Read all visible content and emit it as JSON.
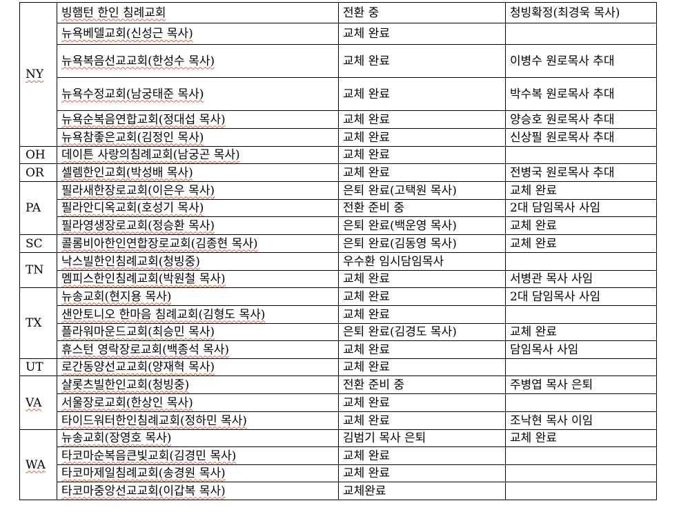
{
  "groups": [
    {
      "state": "NY",
      "rows": [
        [
          "빙햄턴 한인 침례교회",
          "전환 중",
          "청빙확정(최경욱 목사)"
        ],
        [
          "뉴욕베델교회(신성근 목사)",
          "교체 완료",
          ""
        ],
        [
          "뉴욕복음선교교회(한성수 목사)",
          "교체 완료",
          "이병수 원로목사 추대"
        ],
        [
          "뉴욕수정교회(남궁태준 목사)",
          "교체 완료",
          "박수복 원로목사 추대"
        ],
        [
          "뉴욕순복음연합교회(정대섭 목사)",
          "교체 완료",
          "양승호 원로목사 추대"
        ],
        [
          "뉴욕참좋은교회(김정인 목사)",
          "교체 완료",
          "신상필 원로목사 추대"
        ]
      ]
    },
    {
      "state": "OH",
      "rows": [
        [
          "데이튼 사랑의침례교회(남궁곤 목사)",
          "교체 완료",
          ""
        ]
      ]
    },
    {
      "state": "OR",
      "rows": [
        [
          "셀렘한인교회(박성배 목사)",
          "교체 완료",
          "전병국 원로목사 추대"
        ]
      ]
    },
    {
      "state": "PA",
      "rows": [
        [
          "필라새한장로교회(이은우 목사)",
          "은퇴 완료(고택원 목사)",
          "교체 완료"
        ],
        [
          "필라안디옥교회(호성기 목사)",
          "전환 준비 중",
          "2대 담임목사 사임"
        ],
        [
          "필라영생장로교회(정승환 목사)",
          "은퇴 완료(백운영 목사)",
          "교체 완료"
        ]
      ]
    },
    {
      "state": "SC",
      "rows": [
        [
          "콜롬비아한인연합장로교회(김종현 목사)",
          "은퇴 완료(김동영 목사)",
          "교체 완료"
        ]
      ]
    },
    {
      "state": "TN",
      "rows": [
        [
          "낙스빌한인침례교회(청빙중)",
          "우수환 임시담임목사",
          ""
        ],
        [
          "멤피스한인침례교회(박원철 목사)",
          "교체 완료",
          "서병관 목사 사임"
        ]
      ]
    },
    {
      "state": "TX",
      "rows": [
        [
          "뉴송교회(현지용 목사)",
          "교체 완료",
          "2대 담임목사 사임"
        ],
        [
          "샌안토니오 한마음 침례교회(김형도 목사)",
          "교체 완료",
          ""
        ],
        [
          "플라워마운드교회(최승민 목사)",
          "은퇴 완료(김경도 목사)",
          "교체 완료"
        ],
        [
          "휴스턴 영락장로교회(백종석 목사)",
          "교체 완료",
          "담임목사 사임"
        ]
      ]
    },
    {
      "state": "UT",
      "rows": [
        [
          "로간동양선교교회(양재혁 목사)",
          "교체 완료",
          ""
        ]
      ]
    },
    {
      "state": "VA",
      "rows": [
        [
          "샬롯츠빌한인교회(청빙중)",
          "전환 준비 중",
          "주병엽 목사 은퇴"
        ],
        [
          "서울장로교회(한상인 목사)",
          "교체 완료",
          ""
        ],
        [
          "타이드워터한인침례교회(정하민 목사)",
          "교체 완료",
          "조낙현 목사 이임"
        ]
      ]
    },
    {
      "state": "WA",
      "rows": [
        [
          "뉴송교회(장영호 목사)",
          "김범기 목사 은퇴",
          "교체 완료"
        ],
        [
          "타코마순복음큰빛교회(김경민 목사)",
          "교체 완료",
          ""
        ],
        [
          "타코마제일침례교회(송경원 목사)",
          "교체 완료",
          ""
        ],
        [
          "타코마중앙선교교회(이갑복 목사)",
          "교체완료",
          ""
        ]
      ]
    }
  ]
}
